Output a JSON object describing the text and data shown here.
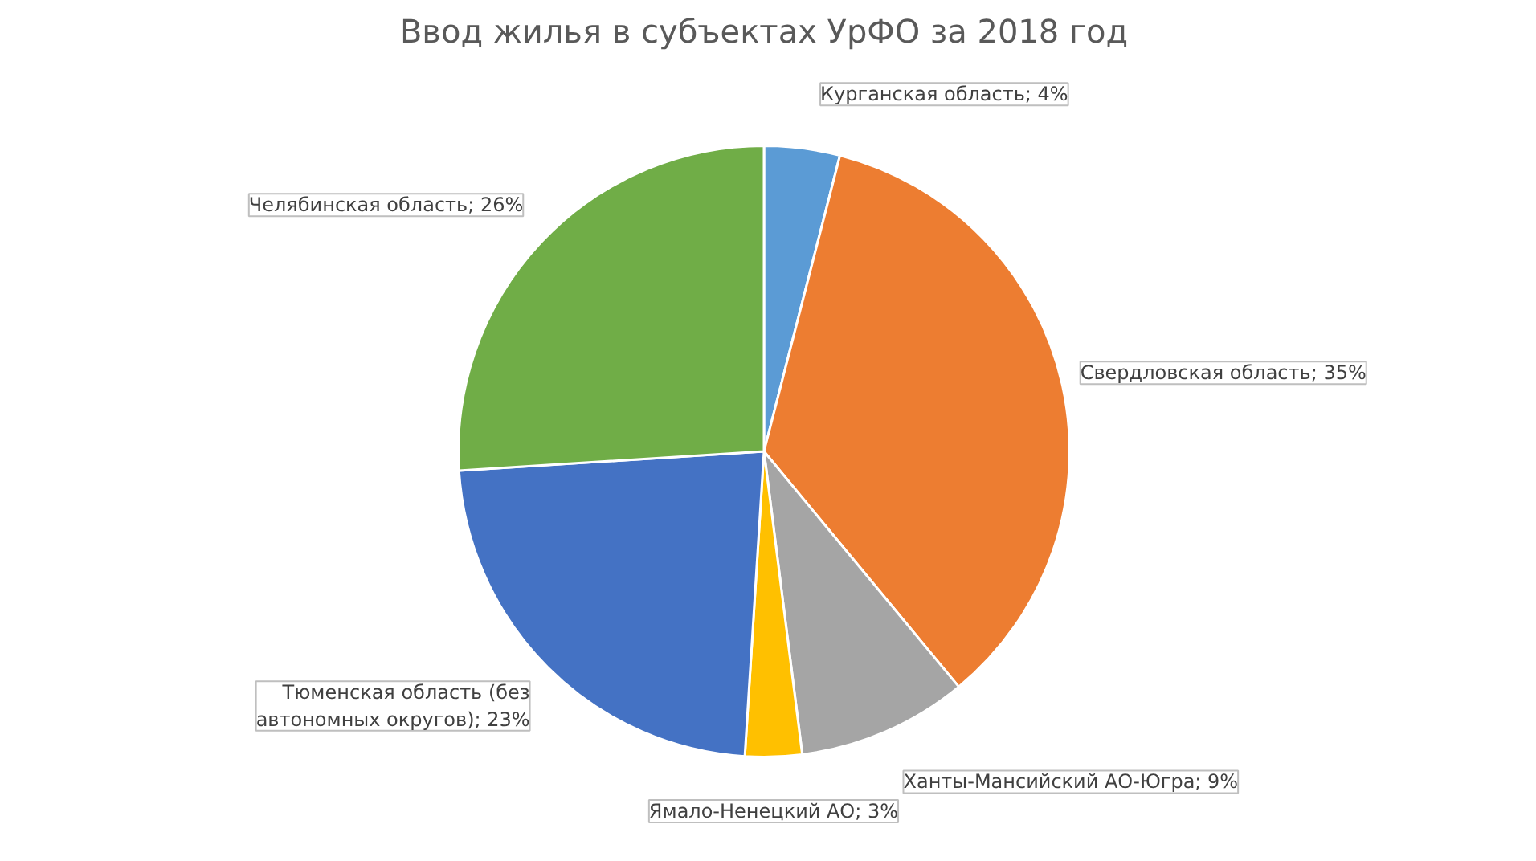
{
  "chart_data": {
    "type": "pie",
    "title": "Ввод жилья в субъектах УрФО за 2018 год",
    "categories": [
      "Курганская область",
      "Свердловская область",
      "Ханты-Мансийский АО-Югра",
      "Ямало-Ненецкий АО",
      "Тюменская область (без автономных округов)",
      "Челябинская область"
    ],
    "values": [
      4,
      35,
      9,
      3,
      23,
      26
    ],
    "value_labels": [
      "4%",
      "35%",
      "9%",
      "3%",
      "23%",
      "26%"
    ],
    "colors": [
      "#5b9bd5",
      "#ed7d31",
      "#a5a5a5",
      "#ffc000",
      "#4472c4",
      "#70ad47"
    ],
    "legend": false
  }
}
